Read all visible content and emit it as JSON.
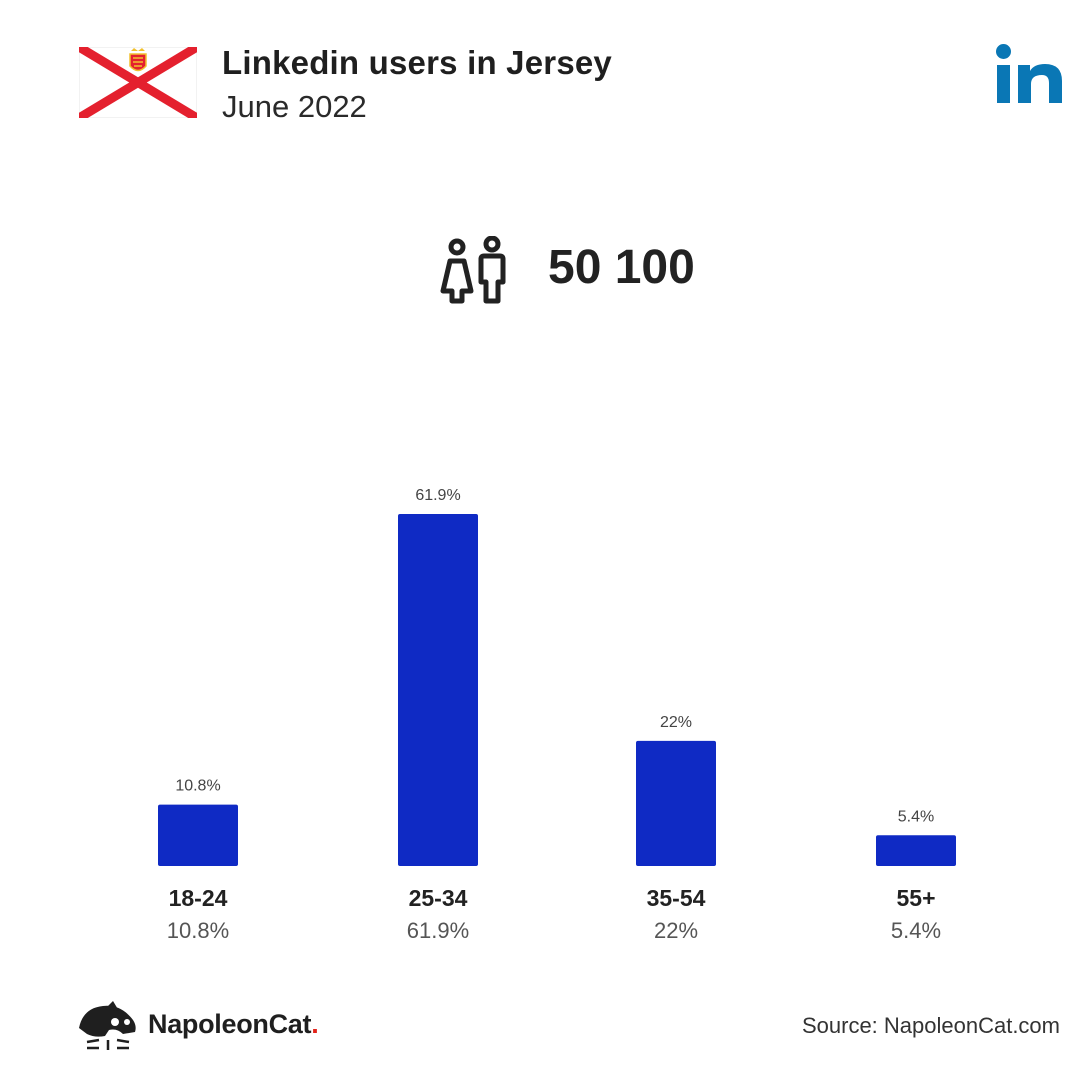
{
  "header": {
    "title": "Linkedin users in Jersey",
    "subtitle": "June 2022"
  },
  "total_users": "50 100",
  "colors": {
    "bar": "#0f2ac4",
    "flag_red": "#e4202e",
    "linkedin_blue": "#0a77b5",
    "brand_dot": "#e2231a"
  },
  "icons": [
    "jersey-flag-icon",
    "linkedin-logo-icon",
    "people-icon",
    "napoleoncat-logo-icon"
  ],
  "chart_data": {
    "type": "bar",
    "categories": [
      "18-24",
      "25-34",
      "35-54",
      "55+"
    ],
    "values": [
      10.8,
      61.9,
      22,
      5.4
    ],
    "value_labels": [
      "10.8%",
      "61.9%",
      "22%",
      "5.4%"
    ],
    "ylim": [
      0,
      61.9
    ],
    "grid": false,
    "legend": "none"
  },
  "footer": {
    "brand_name": "NapoleonCat",
    "brand_suffix": ".",
    "source": "Source: NapoleonCat.com"
  }
}
